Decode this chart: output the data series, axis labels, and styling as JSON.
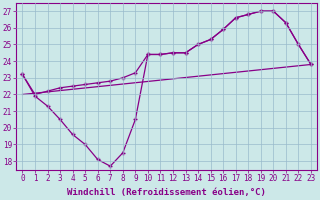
{
  "xlabel": "Windchill (Refroidissement éolien,°C)",
  "bg_color": "#cce8e8",
  "line_color": "#880088",
  "xlim": [
    -0.5,
    23.5
  ],
  "ylim": [
    17.5,
    27.5
  ],
  "yticks": [
    18,
    19,
    20,
    21,
    22,
    23,
    24,
    25,
    26,
    27
  ],
  "xticks": [
    0,
    1,
    2,
    3,
    4,
    5,
    6,
    7,
    8,
    9,
    10,
    11,
    12,
    13,
    14,
    15,
    16,
    17,
    18,
    19,
    20,
    21,
    22,
    23
  ],
  "line1_x": [
    0,
    1,
    2,
    3,
    4,
    5,
    6,
    7,
    8,
    9,
    10,
    11,
    12,
    13,
    14,
    15,
    16,
    17,
    18,
    19,
    20,
    21,
    22,
    23
  ],
  "line1_y": [
    23.2,
    21.9,
    21.3,
    20.5,
    19.6,
    19.0,
    18.1,
    17.7,
    18.5,
    20.5,
    24.4,
    24.4,
    24.5,
    24.5,
    25.0,
    25.3,
    25.9,
    26.6,
    26.8,
    27.0,
    27.0,
    26.3,
    25.0,
    23.8
  ],
  "line2_x": [
    0,
    1,
    2,
    3,
    4,
    5,
    6,
    7,
    8,
    9,
    10,
    11,
    12,
    13,
    14,
    15,
    16,
    17,
    18,
    19,
    20,
    21,
    22,
    23
  ],
  "line2_y": [
    23.2,
    22.0,
    22.2,
    22.4,
    22.5,
    22.6,
    22.7,
    22.8,
    23.0,
    23.3,
    24.4,
    24.4,
    24.5,
    24.5,
    25.0,
    25.3,
    25.9,
    26.6,
    26.8,
    27.0,
    27.0,
    26.3,
    25.0,
    23.8
  ],
  "line3_x": [
    0,
    23
  ],
  "line3_y": [
    22.0,
    23.8
  ],
  "grid_color": "#99bbcc",
  "tick_fontsize": 5.5,
  "label_fontsize": 6.5
}
